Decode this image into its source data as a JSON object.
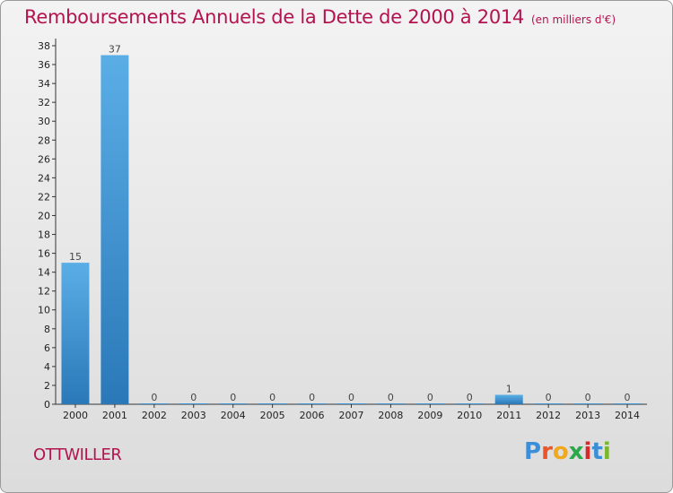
{
  "chart_data": {
    "type": "bar",
    "title": "Remboursements Annuels de la Dette de 2000 à 2014",
    "subtitle": "(en milliers d'€)",
    "xlabel": "",
    "ylabel": "",
    "categories": [
      "2000",
      "2001",
      "2002",
      "2003",
      "2004",
      "2005",
      "2006",
      "2007",
      "2008",
      "2009",
      "2010",
      "2011",
      "2012",
      "2013",
      "2014"
    ],
    "values": [
      15,
      37,
      0,
      0,
      0,
      0,
      0,
      0,
      0,
      0,
      0,
      1,
      0,
      0,
      0
    ],
    "ylim": [
      0,
      38
    ],
    "yticks": [
      0,
      2,
      4,
      6,
      8,
      10,
      12,
      14,
      16,
      18,
      20,
      22,
      24,
      26,
      28,
      30,
      32,
      34,
      36,
      38
    ],
    "grid": false,
    "colors": {
      "bar_light": "#5aaee6",
      "bar_dark": "#2a78b8",
      "title": "#b3134e"
    }
  },
  "footer": {
    "town": "OTTWILLER",
    "logo_letters": [
      "P",
      "r",
      "o",
      "x",
      "i",
      "t",
      "i"
    ],
    "logo_colors": [
      "#3a8fd8",
      "#e8562a",
      "#f0a81c",
      "#2aa84a",
      "#d8282a",
      "#3a8fd8",
      "#7ab82a"
    ]
  }
}
